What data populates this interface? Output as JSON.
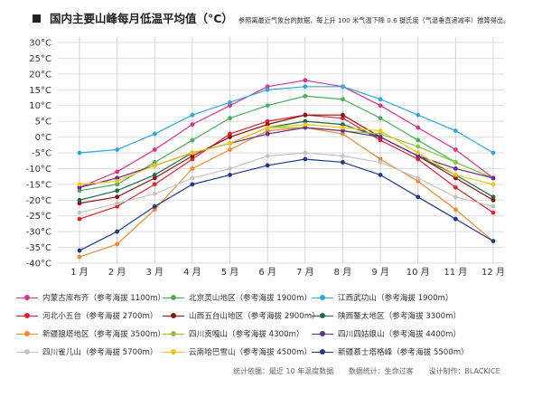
{
  "title": {
    "main": "国内主要山峰每月低温平均值（°C）",
    "subtitle": "参照离最近气象台的数据，每上升 100 米气温下降 0.6 摄氏度（气温垂直递减率）推算得出。"
  },
  "footer": {
    "source": "统计依据：最近 10 年温度数据",
    "stats": "数据统计：生命过客",
    "design": "设计制作：BLACKICE"
  },
  "chart_data": {
    "type": "line",
    "title": "国内主要山峰每月低温平均值（°C）",
    "categories": [
      "1 月",
      "2 月",
      "3 月",
      "4 月",
      "5 月",
      "6 月",
      "7 月",
      "8 月",
      "9 月",
      "10 月",
      "11 月",
      "12 月"
    ],
    "y_ticks": [
      "30°C",
      "25°C",
      "20°C",
      "15°C",
      "10°C",
      "5°C",
      "0°C",
      "-5°C",
      "-10°C",
      "-15°C",
      "-20°C",
      "-25°C",
      "-30°C",
      "-35°C",
      "-40°C"
    ],
    "ylim": [
      -40,
      30
    ],
    "grid": true,
    "legend_position": "bottom",
    "series": [
      {
        "name": "内蒙古库布齐（参考海拔 1100m）",
        "color": "#d6338f",
        "values": [
          -16,
          -11,
          -4,
          4,
          10,
          16,
          18,
          16,
          10,
          3,
          -4,
          -13
        ]
      },
      {
        "name": "北京灵山地区（参考海拔 1900m）",
        "color": "#4aae5b",
        "values": [
          -17,
          -15,
          -8,
          -1,
          6,
          10,
          13,
          12,
          6,
          -1,
          -8,
          -13
        ]
      },
      {
        "name": "江西武功山（参考海拔 1900m）",
        "color": "#2fa9d8",
        "values": [
          -5,
          -4,
          1,
          7,
          11,
          15,
          16,
          16,
          12,
          7,
          2,
          -5
        ]
      },
      {
        "name": "河北小五台（参考海拔 2700m）",
        "color": "#e0242e",
        "values": [
          -26,
          -22,
          -15,
          -7,
          1,
          5,
          7,
          6,
          -1,
          -7,
          -16,
          -24
        ]
      },
      {
        "name": "山西五台山地区（参考海拔 2900m）",
        "color": "#8b1010",
        "values": [
          -21,
          -19,
          -13,
          -6,
          0,
          4,
          7,
          7,
          0,
          -6,
          -13,
          -20
        ]
      },
      {
        "name": "陕西鳌太地区（参考海拔 3300m）",
        "color": "#1e6b4a",
        "values": [
          -20,
          -17,
          -12,
          -5,
          -2,
          3,
          5,
          4,
          0,
          -6,
          -12,
          -19
        ]
      },
      {
        "name": "新疆狼塔地区（参考海拔 3500m）",
        "color": "#f08a30",
        "values": [
          -38,
          -34,
          -23,
          -10,
          -4,
          2,
          3,
          1,
          -7,
          -14,
          -23,
          -33
        ]
      },
      {
        "name": "四川贡嘎山（参考海拔 4300m）",
        "color": "#8cc63f",
        "values": [
          -16,
          -13,
          -9,
          -5,
          -2,
          3,
          3,
          2,
          1,
          -3,
          -8,
          -13
        ]
      },
      {
        "name": "四川四姑娘山（参考海拔 4400m）",
        "color": "#6b2c8e",
        "values": [
          -16,
          -13,
          -9,
          -5,
          -2,
          1,
          3,
          2,
          0,
          -6,
          -10,
          -13
        ]
      },
      {
        "name": "四川雀儿山（参考海拔 5700m）",
        "color": "#c4c4c4",
        "values": [
          -24,
          -21,
          -18,
          -13,
          -10,
          -6,
          -5,
          -6,
          -8,
          -13,
          -19,
          -22
        ]
      },
      {
        "name": "云南哈巴雪山（参考海拔 4500m）",
        "color": "#f2c318",
        "values": [
          -15,
          -14,
          -9,
          -5,
          -2,
          3,
          4,
          3,
          2,
          -5,
          -12,
          -15
        ]
      },
      {
        "name": "新疆慕士塔格峰（参考海拔 5500m）",
        "color": "#1f3a8a",
        "values": [
          -36,
          -30,
          -22,
          -15,
          -12,
          -9,
          -7,
          -8,
          -12,
          -19,
          -26,
          -33
        ]
      }
    ]
  }
}
